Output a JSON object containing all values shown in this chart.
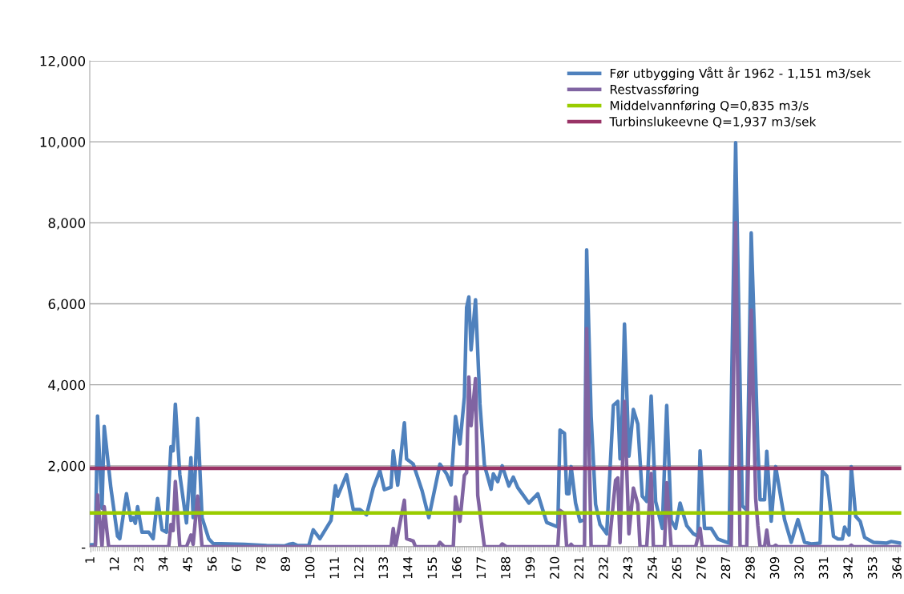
{
  "chart_data": {
    "type": "line",
    "xlim": [
      0.5,
      365.5
    ],
    "xticks": [
      1,
      12,
      23,
      34,
      45,
      56,
      67,
      78,
      89,
      100,
      111,
      122,
      133,
      144,
      155,
      166,
      177,
      188,
      199,
      210,
      221,
      232,
      243,
      254,
      265,
      276,
      287,
      298,
      309,
      320,
      331,
      342,
      353,
      364
    ],
    "ylim": [
      0,
      12000
    ],
    "yticks": [
      {
        "value": 0,
        "label": "-"
      },
      {
        "value": 2000,
        "label": "2,000"
      },
      {
        "value": 4000,
        "label": "4,000"
      },
      {
        "value": 6000,
        "label": "6,000"
      },
      {
        "value": 8000,
        "label": "8,000"
      },
      {
        "value": 10000,
        "label": "10,000"
      },
      {
        "value": 12000,
        "label": "12,000"
      }
    ],
    "grid": "y",
    "legend": "top right",
    "marker": "none",
    "line_style": "solid",
    "series": [
      {
        "name": "Før utbygging Vått år 1962 - 1,151 m3/sek",
        "color": "#4f81bd",
        "x": [
          1,
          3,
          4,
          6,
          7,
          10,
          13,
          14,
          17,
          19,
          20,
          21,
          22,
          24,
          27,
          29,
          31,
          33,
          35,
          37,
          38,
          39,
          41,
          44,
          46,
          47,
          49,
          51,
          54,
          56,
          70,
          80,
          88,
          90,
          92,
          94,
          99,
          101,
          104,
          109,
          111,
          112,
          116,
          119,
          122,
          125,
          128,
          131,
          133,
          136,
          137,
          139,
          142,
          143,
          146,
          150,
          153,
          158,
          161,
          163,
          165,
          167,
          169,
          170,
          171,
          172,
          174,
          176,
          178,
          181,
          182,
          184,
          186,
          189,
          191,
          193,
          198,
          202,
          206,
          211,
          212,
          214,
          215,
          216,
          217,
          219,
          221,
          223,
          224,
          226,
          228,
          230,
          233,
          236,
          238,
          239,
          240,
          241,
          243,
          245,
          247,
          249,
          251,
          253,
          255,
          258,
          260,
          262,
          264,
          266,
          269,
          272,
          274,
          275,
          277,
          280,
          283,
          288,
          291,
          294,
          296,
          298,
          300,
          301,
          302,
          304,
          305,
          307,
          309,
          313,
          316,
          319,
          322,
          325,
          329,
          330,
          332,
          335,
          337,
          339,
          340,
          342,
          343,
          345,
          347,
          349,
          353,
          359,
          361,
          365
        ],
        "values": [
          50,
          50,
          3230,
          950,
          2970,
          1450,
          260,
          200,
          1310,
          650,
          720,
          580,
          990,
          360,
          360,
          200,
          1190,
          420,
          360,
          2470,
          2370,
          3520,
          1780,
          590,
          2200,
          720,
          3170,
          720,
          200,
          80,
          60,
          30,
          20,
          60,
          80,
          30,
          30,
          420,
          200,
          650,
          1510,
          1250,
          1780,
          920,
          920,
          790,
          1450,
          1880,
          1410,
          1470,
          2370,
          1520,
          3060,
          2170,
          2040,
          1380,
          720,
          2040,
          1800,
          1530,
          3220,
          2540,
          3700,
          5910,
          6170,
          4860,
          6100,
          3520,
          2020,
          1420,
          1800,
          1610,
          2000,
          1500,
          1720,
          1460,
          1080,
          1310,
          600,
          490,
          2880,
          2800,
          1310,
          1310,
          1980,
          1080,
          630,
          670,
          7330,
          3220,
          1050,
          550,
          320,
          3490,
          3590,
          2170,
          3300,
          5500,
          2240,
          3390,
          3030,
          1250,
          1120,
          3720,
          1120,
          455,
          3490,
          650,
          455,
          1080,
          520,
          320,
          260,
          2370,
          455,
          455,
          190,
          90,
          9980,
          1010,
          900,
          7750,
          4270,
          2440,
          1160,
          1160,
          2360,
          630,
          1980,
          670,
          110,
          670,
          110,
          70,
          90,
          1870,
          1750,
          260,
          190,
          190,
          485,
          290,
          1980,
          750,
          630,
          230,
          110,
          90,
          130,
          90
        ]
      },
      {
        "name": "Restvassføring",
        "color": "#8064a2",
        "x": [
          1,
          3,
          4,
          6,
          7,
          9,
          36,
          37,
          38,
          39,
          41,
          44,
          46,
          47,
          49,
          51,
          136,
          137,
          138,
          142,
          143,
          146,
          147,
          157,
          158,
          160,
          164,
          165,
          167,
          169,
          170,
          171,
          172,
          174,
          175,
          178,
          185,
          186,
          188,
          211,
          212,
          214,
          215,
          216,
          217,
          218,
          223,
          224,
          226,
          234,
          237,
          238,
          239,
          241,
          243,
          245,
          247,
          248,
          251,
          253,
          254,
          259,
          260,
          262,
          273,
          275,
          276,
          289,
          291,
          293,
          296,
          298,
          300,
          301,
          302,
          304,
          305,
          306,
          308,
          309,
          310,
          342,
          343,
          344,
          365
        ],
        "values": [
          0,
          0,
          1280,
          0,
          990,
          0,
          0,
          550,
          400,
          1610,
          0,
          0,
          290,
          60,
          1250,
          0,
          0,
          450,
          0,
          1150,
          200,
          140,
          0,
          0,
          110,
          0,
          0,
          1230,
          630,
          1760,
          1830,
          4190,
          2990,
          4150,
          1270,
          0,
          0,
          70,
          0,
          0,
          900,
          820,
          0,
          0,
          60,
          0,
          0,
          5390,
          0,
          0,
          1640,
          1700,
          100,
          3590,
          320,
          1450,
          1050,
          0,
          0,
          1810,
          0,
          0,
          1580,
          0,
          0,
          455,
          0,
          0,
          8000,
          0,
          0,
          5840,
          1200,
          520,
          0,
          0,
          410,
          0,
          0,
          40,
          0,
          0,
          40,
          0,
          0
        ]
      },
      {
        "name": "Middelvannføring Q=0,835 m3/s",
        "color": "#99cc00",
        "x": [
          0.5,
          365.5
        ],
        "values": [
          835,
          835
        ]
      },
      {
        "name": "Turbinslukeevne Q=1,937 m3/sek",
        "color": "#993366",
        "x": [
          0.5,
          365.5
        ],
        "values": [
          1937,
          1937
        ]
      }
    ]
  }
}
